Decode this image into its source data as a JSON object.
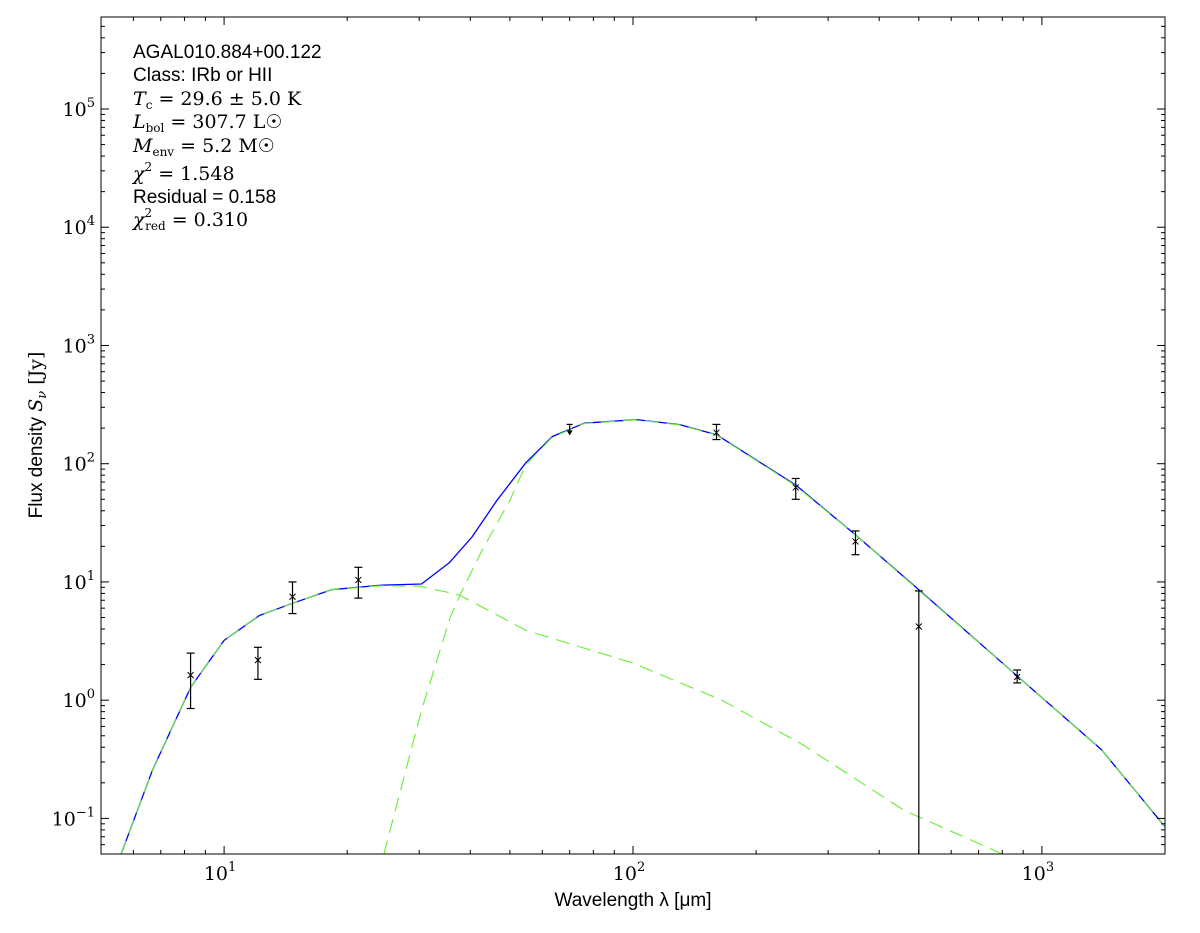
{
  "chart_data": {
    "type": "scatter",
    "xlabel": "Wavelength λ [μm]",
    "ylabel_text": "Flux density ",
    "ylabel_symbol": "S",
    "ylabel_sub": "ν",
    "ylabel_unit": " [Jy]",
    "x_scale": "log",
    "y_scale": "log",
    "xlim": [
      5,
      2000
    ],
    "ylim": [
      0.05,
      600000
    ],
    "grid": false,
    "x_ticks": [
      {
        "base": "10",
        "exp": "1",
        "value": 10
      },
      {
        "base": "10",
        "exp": "2",
        "value": 100
      },
      {
        "base": "10",
        "exp": "3",
        "value": 1000
      }
    ],
    "y_ticks": [
      {
        "base": "10",
        "exp": "−1",
        "value": 0.1
      },
      {
        "base": "10",
        "exp": "0",
        "value": 1
      },
      {
        "base": "10",
        "exp": "1",
        "value": 10
      },
      {
        "base": "10",
        "exp": "2",
        "value": 100
      },
      {
        "base": "10",
        "exp": "3",
        "value": 1000
      },
      {
        "base": "10",
        "exp": "4",
        "value": 10000
      },
      {
        "base": "10",
        "exp": "5",
        "value": 100000
      }
    ],
    "annotation": {
      "source": "AGAL010.884+00.122",
      "class": "Class: IRb or HII",
      "tc": {
        "sym": "T",
        "sub": "c",
        "rest": " = 29.6 ± 5.0 K"
      },
      "lbol": {
        "sym": "L",
        "sub": "bol",
        "rest": " = 307.7 L☉"
      },
      "menv": {
        "sym": "M",
        "sub": "env",
        "rest": " = 5.2 M☉"
      },
      "chi2": {
        "sym": "χ",
        "sup": "2",
        "rest": " = 1.548"
      },
      "residual": "Residual = 0.158",
      "chi2red": {
        "sym": "χ",
        "sup": "2",
        "sub": "red",
        "rest": " = 0.310"
      }
    },
    "points": [
      {
        "x": 8.28,
        "y": 1.63,
        "yerr_lo": 0.85,
        "yerr_hi": 2.5
      },
      {
        "x": 12.1,
        "y": 2.18,
        "yerr_lo": 1.5,
        "yerr_hi": 2.8
      },
      {
        "x": 14.7,
        "y": 7.5,
        "yerr_lo": 5.4,
        "yerr_hi": 10.0
      },
      {
        "x": 21.3,
        "y": 10.4,
        "yerr_lo": 7.3,
        "yerr_hi": 13.3
      },
      {
        "x": 160,
        "y": 183,
        "yerr_lo": 160,
        "yerr_hi": 215
      },
      {
        "x": 250,
        "y": 63,
        "yerr_lo": 50,
        "yerr_hi": 75
      },
      {
        "x": 350,
        "y": 22,
        "yerr_lo": 17,
        "yerr_hi": 27
      },
      {
        "x": 500,
        "y": 4.2,
        "yerr_lo": 0.01,
        "yerr_hi": 8.4
      },
      {
        "x": 870,
        "y": 1.57,
        "yerr_lo": 1.4,
        "yerr_hi": 1.8
      }
    ],
    "upper_limits": [
      {
        "x": 70,
        "y": 215
      }
    ],
    "series": [
      {
        "style": "solid",
        "color": "#0000ff",
        "x": [
          5.6,
          6.68,
          8.3,
          10,
          12.2,
          14.7,
          18.3,
          24.3,
          30.4,
          35.5,
          40.4,
          46.5,
          54.7,
          63.5,
          76,
          102,
          130,
          160,
          250,
          350,
          500,
          870,
          1400,
          2000
        ],
        "y": [
          0.05,
          0.255,
          1.3,
          3.2,
          5.2,
          6.6,
          8.6,
          9.4,
          9.6,
          14.5,
          24,
          49,
          102,
          170,
          220,
          236,
          214,
          176,
          66,
          25,
          8.6,
          1.6,
          0.38,
          0.085
        ]
      },
      {
        "style": "dashed",
        "color": "#66ee33",
        "x": [
          5.6,
          6.68,
          8.3,
          10,
          12.2,
          14.7,
          18.3,
          24.3,
          30,
          37.5,
          54.7,
          100,
          165,
          260,
          460,
          800
        ],
        "y": [
          0.05,
          0.255,
          1.3,
          3.2,
          5.2,
          6.6,
          8.6,
          9.3,
          9.2,
          7.8,
          3.9,
          2.06,
          1.0,
          0.42,
          0.117,
          0.05
        ]
      },
      {
        "style": "dashed",
        "color": "#66ee33",
        "x": [
          24.6,
          30.4,
          35.7,
          37.8,
          42.8,
          50,
          54.7,
          63.5,
          76,
          102,
          130,
          160,
          250,
          350,
          500,
          870,
          1400,
          2000
        ],
        "y": [
          0.05,
          0.82,
          5.0,
          7.8,
          18.7,
          49,
          98,
          168,
          219,
          235,
          213,
          175,
          65,
          25,
          8.5,
          1.6,
          0.38,
          0.085
        ]
      }
    ]
  }
}
